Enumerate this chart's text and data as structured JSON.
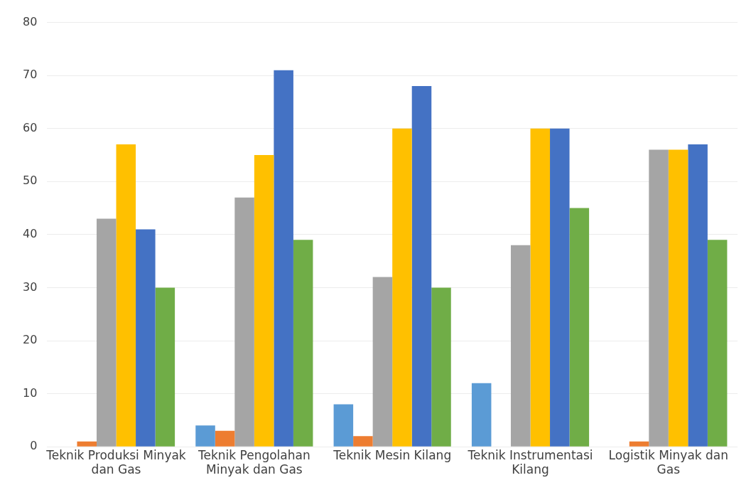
{
  "chart_data": {
    "type": "bar",
    "categories": [
      "Teknik Produksi Minyak dan Gas",
      "Teknik Pengolahan Minyak dan Gas",
      "Teknik Mesin Kilang",
      "Teknik Instrumentasi Kilang",
      "Logistik Minyak dan Gas"
    ],
    "series": [
      {
        "color": "#5b9bd5",
        "values": [
          0,
          4,
          8,
          12,
          0
        ]
      },
      {
        "color": "#ed7d31",
        "values": [
          1,
          3,
          2,
          0,
          1
        ]
      },
      {
        "color": "#a5a5a5",
        "values": [
          43,
          47,
          32,
          38,
          56
        ]
      },
      {
        "color": "#ffc000",
        "values": [
          57,
          55,
          60,
          60,
          56
        ]
      },
      {
        "color": "#4472c4",
        "values": [
          41,
          71,
          68,
          60,
          57
        ]
      },
      {
        "color": "#70ad47",
        "values": [
          30,
          39,
          30,
          45,
          39
        ]
      }
    ],
    "ylim": [
      0,
      80
    ],
    "yticks": [
      0,
      10,
      20,
      30,
      40,
      50,
      60,
      70,
      80
    ],
    "grid": "y",
    "legend": false
  }
}
